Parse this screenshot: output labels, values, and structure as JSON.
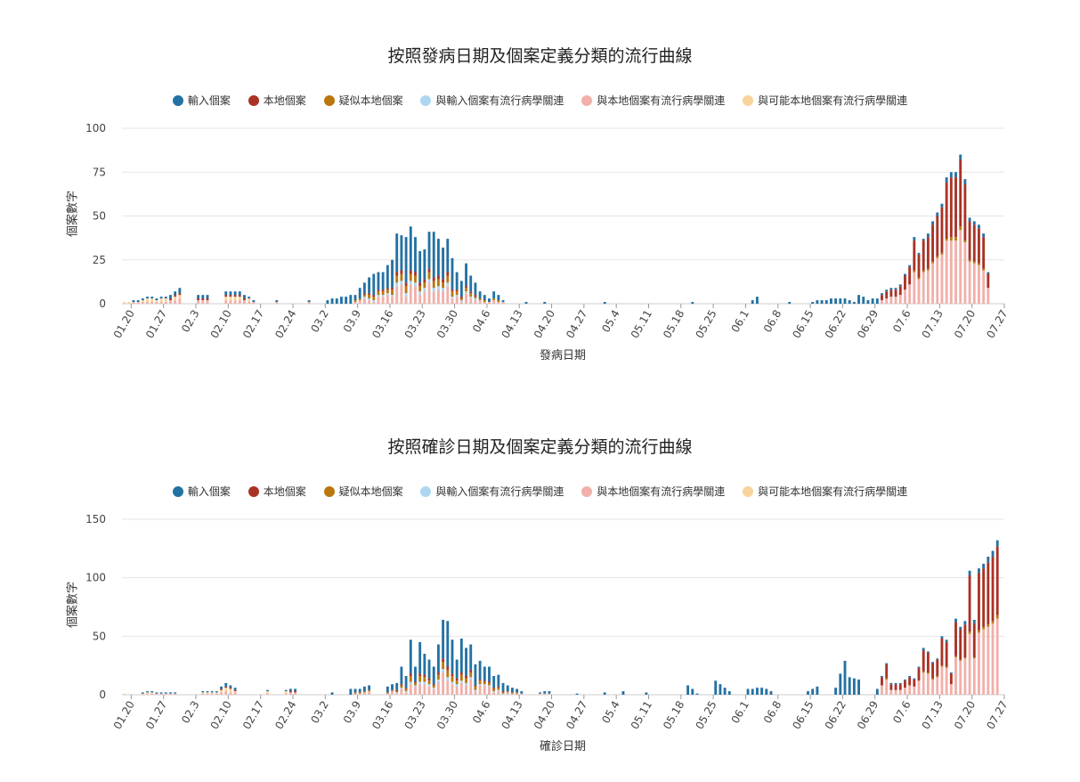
{
  "chart_data": [
    {
      "type": "bar",
      "title": "按照發病日期及個案定義分類的流行曲線",
      "xlabel": "發病日期",
      "ylabel": "個案數字",
      "ylim": [
        0,
        100
      ],
      "yticks": [
        0,
        25,
        50,
        75,
        100
      ],
      "x_start": "2020-01-18",
      "x_end": "2020-07-27",
      "xticks": [
        "01.20",
        "01.27",
        "02.3",
        "02.10",
        "02.17",
        "02.24",
        "03.2",
        "03.9",
        "03.16",
        "03.23",
        "03.30",
        "04.6",
        "04.13",
        "04.20",
        "04.27",
        "05.4",
        "05.11",
        "05.18",
        "05.25",
        "06.1",
        "06.8",
        "06.15",
        "06.22",
        "06.29",
        "07.6",
        "07.13",
        "07.20",
        "07.27"
      ],
      "grid": true,
      "legend_position": "top",
      "series": [
        {
          "name": "輸入個案",
          "color": "#2471a3"
        },
        {
          "name": "本地個案",
          "color": "#a93226"
        },
        {
          "name": "疑似本地個案",
          "color": "#b9770e"
        },
        {
          "name": "與輸入個案有流行病學關連",
          "color": "#aed6f1"
        },
        {
          "name": "與本地個案有流行病學關連",
          "color": "#f1b0aa"
        },
        {
          "name": "與可能本地個案有流行病學關連",
          "color": "#f8d39b"
        }
      ],
      "anchor_totals": [
        [
          "2020-01-18",
          1
        ],
        [
          "2020-01-21",
          2
        ],
        [
          "2020-01-23",
          4
        ],
        [
          "2020-01-25",
          3
        ],
        [
          "2020-01-28",
          5
        ],
        [
          "2020-01-30",
          9
        ],
        [
          "2020-02-03",
          5
        ],
        [
          "2020-02-05",
          5
        ],
        [
          "2020-02-09",
          7
        ],
        [
          "2020-02-12",
          7
        ],
        [
          "2020-02-15",
          2
        ],
        [
          "2020-02-20",
          2
        ],
        [
          "2020-02-27",
          2
        ],
        [
          "2020-03-02",
          2
        ],
        [
          "2020-03-05",
          4
        ],
        [
          "2020-03-08",
          5
        ],
        [
          "2020-03-10",
          12
        ],
        [
          "2020-03-12",
          17
        ],
        [
          "2020-03-14",
          18
        ],
        [
          "2020-03-16",
          25
        ],
        [
          "2020-03-17",
          40
        ],
        [
          "2020-03-18",
          39
        ],
        [
          "2020-03-19",
          38
        ],
        [
          "2020-03-20",
          44
        ],
        [
          "2020-03-21",
          38
        ],
        [
          "2020-03-22",
          30
        ],
        [
          "2020-03-23",
          31
        ],
        [
          "2020-03-24",
          41
        ],
        [
          "2020-03-25",
          41
        ],
        [
          "2020-03-26",
          37
        ],
        [
          "2020-03-27",
          32
        ],
        [
          "2020-03-28",
          37
        ],
        [
          "2020-03-29",
          26
        ],
        [
          "2020-03-30",
          18
        ],
        [
          "2020-03-31",
          13
        ],
        [
          "2020-04-01",
          23
        ],
        [
          "2020-04-02",
          16
        ],
        [
          "2020-04-04",
          7
        ],
        [
          "2020-04-06",
          3
        ],
        [
          "2020-04-07",
          7
        ],
        [
          "2020-04-09",
          2
        ],
        [
          "2020-04-14",
          1
        ],
        [
          "2020-04-18",
          1
        ],
        [
          "2020-05-01",
          1
        ],
        [
          "2020-05-20",
          1
        ],
        [
          "2020-06-02",
          2
        ],
        [
          "2020-06-03",
          4
        ],
        [
          "2020-06-10",
          1
        ],
        [
          "2020-06-15",
          1
        ],
        [
          "2020-06-17",
          2
        ],
        [
          "2020-06-20",
          3
        ],
        [
          "2020-06-22",
          3
        ],
        [
          "2020-06-24",
          1
        ],
        [
          "2020-06-25",
          5
        ],
        [
          "2020-06-27",
          2
        ],
        [
          "2020-06-29",
          3
        ],
        [
          "2020-07-01",
          8
        ],
        [
          "2020-07-03",
          9
        ],
        [
          "2020-07-04",
          11
        ],
        [
          "2020-07-06",
          22
        ],
        [
          "2020-07-07",
          38
        ],
        [
          "2020-07-08",
          29
        ],
        [
          "2020-07-09",
          37
        ],
        [
          "2020-07-10",
          40
        ],
        [
          "2020-07-11",
          47
        ],
        [
          "2020-07-12",
          52
        ],
        [
          "2020-07-13",
          57
        ],
        [
          "2020-07-14",
          72
        ],
        [
          "2020-07-15",
          75
        ],
        [
          "2020-07-16",
          75
        ],
        [
          "2020-07-17",
          85
        ],
        [
          "2020-07-18",
          71
        ],
        [
          "2020-07-19",
          49
        ],
        [
          "2020-07-20",
          47
        ],
        [
          "2020-07-21",
          45
        ],
        [
          "2020-07-22",
          40
        ],
        [
          "2020-07-23",
          18
        ]
      ]
    },
    {
      "type": "bar",
      "title": "按照確診日期及個案定義分類的流行曲線",
      "xlabel": "確診日期",
      "ylabel": "個案數字",
      "ylim": [
        0,
        150
      ],
      "yticks": [
        0,
        50,
        100,
        150
      ],
      "x_start": "2020-01-18",
      "x_end": "2020-07-27",
      "xticks": [
        "01.20",
        "01.27",
        "02.3",
        "02.10",
        "02.17",
        "02.24",
        "03.2",
        "03.9",
        "03.16",
        "03.23",
        "03.30",
        "04.6",
        "04.13",
        "04.20",
        "04.27",
        "05.4",
        "05.11",
        "05.18",
        "05.25",
        "06.1",
        "06.8",
        "06.15",
        "06.22",
        "06.29",
        "07.6",
        "07.13",
        "07.20",
        "07.27"
      ],
      "grid": true,
      "legend_position": "top",
      "series": [
        {
          "name": "輸入個案",
          "color": "#2471a3"
        },
        {
          "name": "本地個案",
          "color": "#a93226"
        },
        {
          "name": "疑似本地個案",
          "color": "#b9770e"
        },
        {
          "name": "與輸入個案有流行病學關連",
          "color": "#aed6f1"
        },
        {
          "name": "與本地個案有流行病學關連",
          "color": "#f1b0aa"
        },
        {
          "name": "與可能本地個案有流行病學關連",
          "color": "#f8d39b"
        }
      ],
      "anchor_totals": [
        [
          "2020-01-18",
          1
        ],
        [
          "2020-01-22",
          2
        ],
        [
          "2020-01-23",
          3
        ],
        [
          "2020-01-26",
          2
        ],
        [
          "2020-01-29",
          2
        ],
        [
          "2020-02-04",
          3
        ],
        [
          "2020-02-07",
          3
        ],
        [
          "2020-02-09",
          10
        ],
        [
          "2020-02-11",
          6
        ],
        [
          "2020-02-18",
          4
        ],
        [
          "2020-02-22",
          4
        ],
        [
          "2020-02-24",
          5
        ],
        [
          "2020-03-03",
          2
        ],
        [
          "2020-03-07",
          5
        ],
        [
          "2020-03-09",
          5
        ],
        [
          "2020-03-11",
          8
        ],
        [
          "2020-03-15",
          7
        ],
        [
          "2020-03-16",
          9
        ],
        [
          "2020-03-17",
          10
        ],
        [
          "2020-03-18",
          24
        ],
        [
          "2020-03-19",
          16
        ],
        [
          "2020-03-20",
          47
        ],
        [
          "2020-03-21",
          24
        ],
        [
          "2020-03-22",
          45
        ],
        [
          "2020-03-23",
          35
        ],
        [
          "2020-03-24",
          30
        ],
        [
          "2020-03-25",
          24
        ],
        [
          "2020-03-26",
          43
        ],
        [
          "2020-03-27",
          64
        ],
        [
          "2020-03-28",
          63
        ],
        [
          "2020-03-29",
          47
        ],
        [
          "2020-03-30",
          30
        ],
        [
          "2020-03-31",
          48
        ],
        [
          "2020-04-01",
          40
        ],
        [
          "2020-04-02",
          43
        ],
        [
          "2020-04-03",
          26
        ],
        [
          "2020-04-04",
          29
        ],
        [
          "2020-04-05",
          24
        ],
        [
          "2020-04-06",
          24
        ],
        [
          "2020-04-07",
          16
        ],
        [
          "2020-04-08",
          17
        ],
        [
          "2020-04-09",
          10
        ],
        [
          "2020-04-11",
          6
        ],
        [
          "2020-04-13",
          3
        ],
        [
          "2020-04-17",
          2
        ],
        [
          "2020-04-19",
          3
        ],
        [
          "2020-04-25",
          1
        ],
        [
          "2020-05-01",
          2
        ],
        [
          "2020-05-05",
          3
        ],
        [
          "2020-05-10",
          2
        ],
        [
          "2020-05-19",
          8
        ],
        [
          "2020-05-21",
          1
        ],
        [
          "2020-05-25",
          12
        ],
        [
          "2020-05-28",
          3
        ],
        [
          "2020-06-01",
          5
        ],
        [
          "2020-06-04",
          6
        ],
        [
          "2020-06-06",
          3
        ],
        [
          "2020-06-14",
          3
        ],
        [
          "2020-06-16",
          7
        ],
        [
          "2020-06-20",
          6
        ],
        [
          "2020-06-22",
          29
        ],
        [
          "2020-06-23",
          15
        ],
        [
          "2020-06-25",
          13
        ],
        [
          "2020-06-29",
          5
        ],
        [
          "2020-07-01",
          27
        ],
        [
          "2020-07-02",
          10
        ],
        [
          "2020-07-04",
          10
        ],
        [
          "2020-07-06",
          16
        ],
        [
          "2020-07-07",
          14
        ],
        [
          "2020-07-08",
          24
        ],
        [
          "2020-07-09",
          40
        ],
        [
          "2020-07-10",
          37
        ],
        [
          "2020-07-11",
          28
        ],
        [
          "2020-07-12",
          31
        ],
        [
          "2020-07-13",
          50
        ],
        [
          "2020-07-14",
          47
        ],
        [
          "2020-07-15",
          19
        ],
        [
          "2020-07-16",
          65
        ],
        [
          "2020-07-17",
          58
        ],
        [
          "2020-07-18",
          63
        ],
        [
          "2020-07-19",
          106
        ],
        [
          "2020-07-20",
          64
        ],
        [
          "2020-07-21",
          108
        ],
        [
          "2020-07-22",
          112
        ],
        [
          "2020-07-23",
          118
        ],
        [
          "2020-07-24",
          123
        ],
        [
          "2020-07-25",
          132
        ]
      ]
    }
  ]
}
